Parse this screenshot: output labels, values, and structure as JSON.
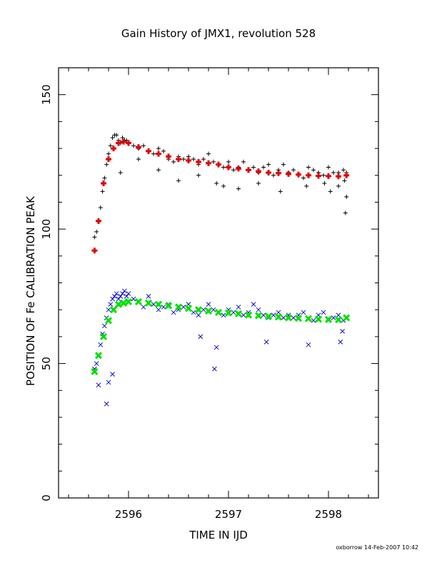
{
  "chart_data": {
    "type": "scatter",
    "title": "Gain History of JMX1, revolution 528",
    "xlabel": "TIME IN IJD",
    "ylabel": "POSITION OF Fe CALIBRATION PEAK",
    "xlim": [
      2595.3,
      2598.5
    ],
    "ylim": [
      0,
      160
    ],
    "xticks": [
      2596,
      2597,
      2598
    ],
    "xtick_labels": [
      "2596",
      "2597",
      "2598"
    ],
    "yticks": [
      0,
      50,
      100,
      150
    ],
    "ytick_labels": [
      "0",
      "50",
      "100",
      "150"
    ],
    "grid": false,
    "legend": "none",
    "series": [
      {
        "marker": "plus",
        "color": "#000000",
        "x": [
          2595.66,
          2595.68,
          2595.7,
          2595.72,
          2595.74,
          2595.76,
          2595.78,
          2595.8,
          2595.82,
          2595.84,
          2595.86,
          2595.88,
          2595.9,
          2595.92,
          2595.94,
          2595.96,
          2595.98,
          2596.0,
          2596.05,
          2596.1,
          2596.15,
          2596.2,
          2596.25,
          2596.3,
          2596.35,
          2596.4,
          2596.45,
          2596.5,
          2596.55,
          2596.6,
          2596.65,
          2596.7,
          2596.75,
          2596.8,
          2596.85,
          2596.9,
          2596.95,
          2597.0,
          2597.05,
          2597.1,
          2597.15,
          2597.2,
          2597.25,
          2597.3,
          2597.35,
          2597.4,
          2597.45,
          2597.5,
          2597.55,
          2597.6,
          2597.65,
          2597.7,
          2597.75,
          2597.8,
          2597.85,
          2597.9,
          2597.95,
          2598.0,
          2598.05,
          2598.1,
          2598.15,
          2598.18,
          2595.92,
          2596.1,
          2596.3,
          2596.5,
          2596.7,
          2596.88,
          2596.95,
          2597.1,
          2597.3,
          2597.52,
          2597.78,
          2597.96,
          2598.02,
          2598.1,
          2598.16,
          2598.18,
          2598.17
        ],
        "y": [
          97,
          99,
          103,
          108,
          114,
          119,
          124,
          128,
          131,
          134,
          135,
          135,
          133,
          132,
          134,
          133,
          133,
          132,
          131,
          130,
          131,
          129,
          128,
          130,
          129,
          126,
          125,
          127,
          126,
          127,
          126,
          124,
          126,
          128,
          125,
          124,
          123,
          125,
          122,
          123,
          125,
          122,
          123,
          121,
          123,
          124,
          120,
          122,
          124,
          121,
          122,
          120,
          119,
          123,
          122,
          121,
          120,
          123,
          121,
          121,
          122,
          121,
          121,
          126,
          122,
          118,
          120,
          117,
          116,
          115,
          117,
          114,
          116,
          117,
          114,
          116,
          118,
          112,
          106
        ]
      },
      {
        "marker": "plus",
        "color": "#e00000",
        "x": [
          2595.66,
          2595.7,
          2595.75,
          2595.8,
          2595.85,
          2595.9,
          2595.95,
          2596.0,
          2596.1,
          2596.2,
          2596.3,
          2596.4,
          2596.5,
          2596.6,
          2596.7,
          2596.8,
          2596.9,
          2597.0,
          2597.1,
          2597.2,
          2597.3,
          2597.4,
          2597.5,
          2597.6,
          2597.7,
          2597.8,
          2597.9,
          2598.0,
          2598.1,
          2598.18
        ],
        "y": [
          92,
          103,
          117,
          126,
          130,
          132,
          132.5,
          132,
          130.5,
          129,
          128,
          127,
          126,
          125.5,
          125,
          124.5,
          124,
          123,
          122.5,
          122,
          121.5,
          121,
          120.8,
          120.5,
          120.3,
          120,
          119.8,
          119.7,
          119.6,
          120
        ]
      },
      {
        "marker": "x",
        "color": "#1010c0",
        "x": [
          2595.66,
          2595.68,
          2595.7,
          2595.72,
          2595.74,
          2595.76,
          2595.78,
          2595.8,
          2595.82,
          2595.84,
          2595.86,
          2595.88,
          2595.9,
          2595.92,
          2595.94,
          2595.96,
          2595.98,
          2596.0,
          2596.05,
          2596.1,
          2596.15,
          2596.2,
          2596.25,
          2596.3,
          2596.35,
          2596.4,
          2596.45,
          2596.5,
          2596.55,
          2596.6,
          2596.65,
          2596.7,
          2596.75,
          2596.8,
          2596.85,
          2596.9,
          2596.95,
          2597.0,
          2597.05,
          2597.1,
          2597.15,
          2597.2,
          2597.25,
          2597.3,
          2597.35,
          2597.4,
          2597.45,
          2597.5,
          2597.55,
          2597.6,
          2597.65,
          2597.7,
          2597.75,
          2597.8,
          2597.85,
          2597.9,
          2597.95,
          2598.0,
          2598.05,
          2598.1,
          2598.15,
          2598.18,
          2595.7,
          2595.78,
          2595.8,
          2595.84,
          2596.72,
          2596.86,
          2596.88,
          2597.38,
          2597.8,
          2598.12,
          2598.14
        ],
        "y": [
          48,
          50,
          53,
          57,
          61,
          64,
          67,
          70,
          72,
          74,
          75,
          76,
          74,
          75,
          76,
          77,
          75,
          76,
          74,
          73,
          71,
          75,
          72,
          70,
          71,
          72,
          69,
          70,
          71,
          72,
          69,
          68,
          70,
          72,
          70,
          69,
          68,
          70,
          69,
          71,
          68,
          69,
          72,
          70,
          68,
          67,
          68,
          69,
          67,
          68,
          67,
          68,
          69,
          67,
          66,
          68,
          69,
          66,
          67,
          68,
          66,
          67,
          42,
          35,
          43,
          46,
          60,
          48,
          56,
          58,
          57,
          58,
          62
        ]
      },
      {
        "marker": "x",
        "color": "#00e000",
        "x": [
          2595.66,
          2595.7,
          2595.75,
          2595.8,
          2595.85,
          2595.9,
          2595.95,
          2596.0,
          2596.1,
          2596.2,
          2596.3,
          2596.4,
          2596.5,
          2596.6,
          2596.7,
          2596.8,
          2596.9,
          2597.0,
          2597.1,
          2597.2,
          2597.3,
          2597.4,
          2597.5,
          2597.6,
          2597.7,
          2597.8,
          2597.9,
          2598.0,
          2598.1,
          2598.18
        ],
        "y": [
          47,
          53,
          60,
          66,
          70,
          72,
          72.5,
          73,
          73,
          72.5,
          72,
          71.5,
          71,
          70.5,
          70,
          69.5,
          69,
          68.8,
          68.5,
          68,
          67.8,
          67.5,
          67.3,
          67,
          66.8,
          66.7,
          66.5,
          66.4,
          66.3,
          67
        ]
      }
    ]
  },
  "footer": "oxborrow 14-Feb-2007 10:42"
}
